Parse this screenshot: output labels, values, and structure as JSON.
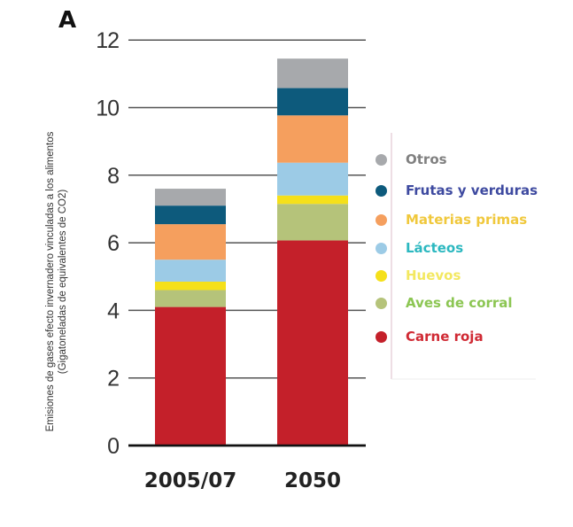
{
  "panel_label": "A",
  "chart_data": {
    "type": "bar",
    "stacked": true,
    "categories": [
      "2005/07",
      "2050"
    ],
    "ylabel_line1": "Emisiones de gases efecto invernadero vinculadas a los alimentos",
    "ylabel_line2": "(Gigatoneladas de equivalentes de CO2)",
    "ylim": [
      0,
      12
    ],
    "yticks": [
      0,
      2,
      4,
      6,
      8,
      10,
      12
    ],
    "grid": true,
    "legend_position": "right",
    "series": [
      {
        "name": "Carne roja",
        "color": "#c4202a",
        "label_color": "#d02a34",
        "values": [
          4.1,
          6.07
        ]
      },
      {
        "name": "Aves de corral",
        "color": "#b5c37a",
        "label_color": "#8cc653",
        "values": [
          0.5,
          1.08
        ]
      },
      {
        "name": "Huevos",
        "color": "#f5e01a",
        "label_color": "#f3e860",
        "values": [
          0.25,
          0.25
        ]
      },
      {
        "name": "Lácteos",
        "color": "#9ccbe6",
        "label_color": "#2cb8c0",
        "values": [
          0.65,
          0.97
        ]
      },
      {
        "name": "Materias primas",
        "color": "#f59f5e",
        "label_color": "#f0c83c",
        "values": [
          1.05,
          1.4
        ]
      },
      {
        "name": "Frutas y verduras",
        "color": "#0d5a7c",
        "label_color": "#3e4aa0",
        "values": [
          0.55,
          0.81
        ]
      },
      {
        "name": "Otros",
        "color": "#a7a9ac",
        "label_color": "#808080",
        "values": [
          0.5,
          0.87
        ]
      }
    ]
  }
}
